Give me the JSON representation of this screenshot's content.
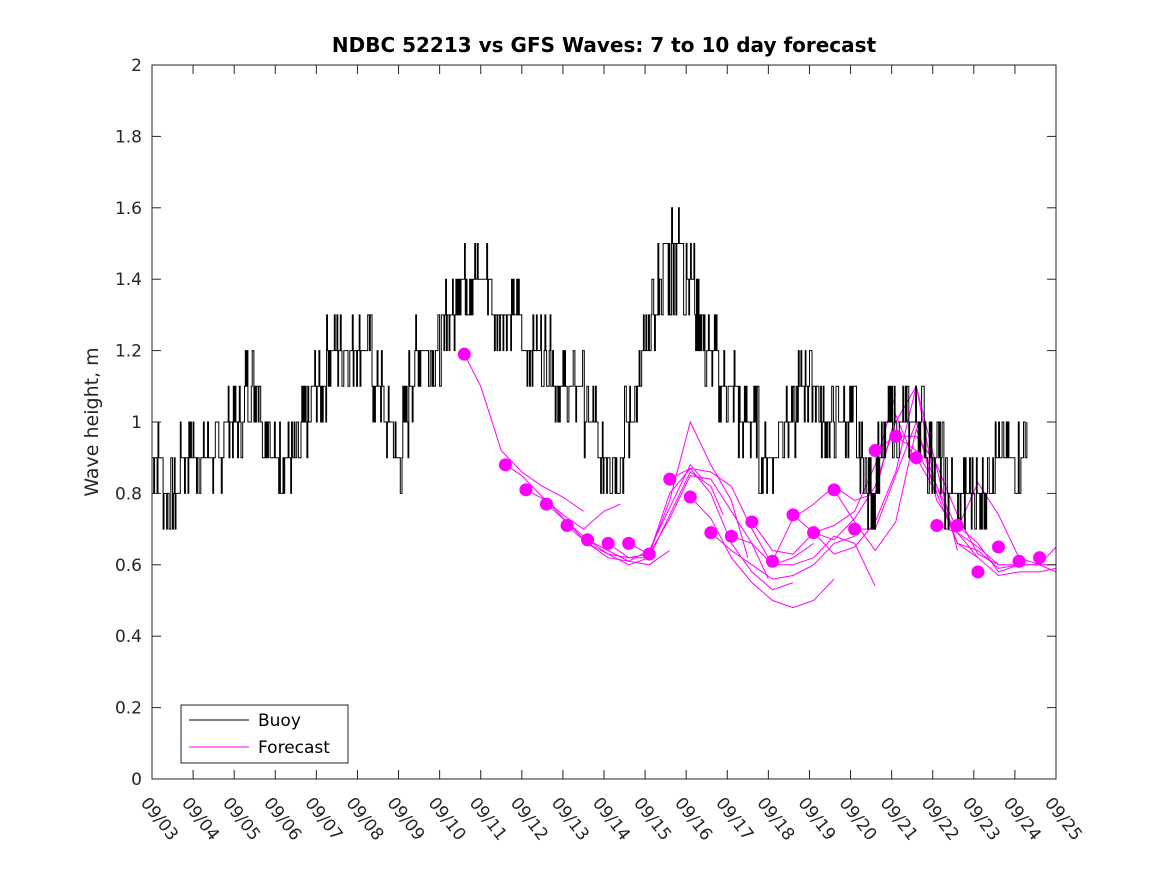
{
  "chart_data": {
    "type": "line",
    "title": "NDBC 52213 vs GFS Waves: 7 to 10 day forecast",
    "xlabel": "",
    "ylabel": "Wave height, m",
    "ylim": [
      0,
      2
    ],
    "xlim": [
      0,
      22
    ],
    "yticks": [
      0,
      0.2,
      0.4,
      0.6,
      0.8,
      1,
      1.2,
      1.4,
      1.6,
      1.8,
      2
    ],
    "ytick_labels": [
      "0",
      "0.2",
      "0.4",
      "0.6",
      "0.8",
      "1",
      "1.2",
      "1.4",
      "1.6",
      "1.8",
      "2"
    ],
    "xtick_labels": [
      "09/03",
      "09/04",
      "09/05",
      "09/06",
      "09/07",
      "09/08",
      "09/09",
      "09/10",
      "09/11",
      "09/12",
      "09/13",
      "09/14",
      "09/15",
      "09/16",
      "09/17",
      "09/18",
      "09/19",
      "09/20",
      "09/21",
      "09/22",
      "09/23",
      "09/24",
      "09/25"
    ],
    "colors": {
      "buoy": "#000000",
      "forecast": "#ff00ff",
      "axes": "#262626"
    },
    "legend": {
      "location": "bottom-left",
      "entries": [
        {
          "label": "Buoy",
          "color": "#000000"
        },
        {
          "label": "Forecast",
          "color": "#ff00ff"
        }
      ]
    },
    "series": [
      {
        "name": "Buoy",
        "x": [
          0.0,
          0.5,
          1.0,
          1.5,
          2.0,
          2.5,
          3.0,
          3.5,
          4.0,
          4.5,
          5.0,
          5.5,
          6.0,
          6.5,
          7.0,
          7.5,
          8.0,
          8.5,
          9.0,
          9.5,
          10.0,
          10.5,
          11.0,
          11.5,
          12.0,
          12.5,
          13.0,
          13.5,
          14.0,
          14.5,
          15.0,
          15.5,
          16.0,
          16.5,
          17.0,
          17.5,
          18.0,
          18.5,
          19.0,
          19.5,
          20.0,
          20.5,
          21.0,
          21.3
        ],
        "values": [
          0.9,
          0.8,
          0.95,
          0.9,
          1.0,
          1.1,
          0.9,
          0.9,
          1.1,
          1.2,
          1.25,
          1.1,
          0.9,
          1.2,
          1.2,
          1.4,
          1.4,
          1.3,
          1.25,
          1.2,
          1.1,
          1.05,
          0.9,
          0.95,
          1.2,
          1.45,
          1.45,
          1.2,
          1.1,
          1.0,
          0.9,
          1.0,
          1.15,
          0.95,
          1.0,
          0.8,
          1.0,
          1.05,
          0.9,
          0.8,
          0.75,
          0.9,
          0.85,
          1.0
        ],
        "buoy_noise": [
          0,
          0.1,
          0.2,
          0.1,
          -0.1,
          0,
          0.1,
          -0.1,
          0.1,
          0,
          0.1,
          -0.1,
          0.2,
          0,
          -0.1,
          0.1,
          0,
          -0.2,
          0.1,
          0.1,
          0,
          -0.1,
          0.2,
          0,
          -0.1,
          0.1,
          0,
          0.1,
          -0.1,
          0.1,
          0,
          -0.2,
          0.1,
          0,
          0.2,
          -0.1,
          0.1,
          0,
          -0.1,
          0.1,
          0,
          0.1,
          -0.1,
          0
        ]
      },
      {
        "name": "Forecast verification points",
        "x": [
          7.6,
          8.6,
          9.1,
          9.6,
          10.1,
          10.6,
          11.1,
          11.6,
          12.1,
          12.6,
          13.1,
          13.6,
          14.1,
          14.6,
          15.1,
          15.6,
          16.1,
          16.6,
          17.1,
          17.6,
          18.1,
          18.6,
          19.1,
          19.6,
          20.1,
          20.6,
          21.1,
          21.6
        ],
        "values": [
          1.19,
          0.88,
          0.81,
          0.77,
          0.71,
          0.67,
          0.66,
          0.66,
          0.63,
          0.84,
          0.79,
          0.69,
          0.68,
          0.72,
          0.61,
          0.74,
          0.69,
          0.81,
          0.7,
          0.92,
          0.96,
          0.9,
          0.71,
          0.71,
          0.58,
          0.65,
          0.61,
          0.62
        ]
      }
    ],
    "forecast_runs": [
      {
        "x": [
          7.6,
          8.0,
          8.5,
          9.0,
          9.5,
          10.0,
          10.5
        ],
        "values": [
          1.19,
          1.1,
          0.92,
          0.86,
          0.82,
          0.79,
          0.75
        ]
      },
      {
        "x": [
          8.6,
          9.0,
          9.5,
          10.0,
          10.5,
          11.0,
          11.4
        ],
        "values": [
          0.88,
          0.85,
          0.79,
          0.74,
          0.7,
          0.75,
          0.77
        ]
      },
      {
        "x": [
          9.1,
          9.6,
          10.1,
          10.6,
          11.1,
          11.6,
          12.1
        ],
        "values": [
          0.81,
          0.78,
          0.72,
          0.66,
          0.63,
          0.62,
          0.62
        ]
      },
      {
        "x": [
          9.6,
          10.1,
          10.6,
          11.1,
          11.6,
          12.1,
          12.6
        ],
        "values": [
          0.77,
          0.72,
          0.67,
          0.64,
          0.61,
          0.6,
          0.64
        ]
      },
      {
        "x": [
          10.1,
          10.6,
          11.1,
          11.6,
          12.1,
          12.6,
          13.1,
          13.4
        ],
        "values": [
          0.71,
          0.66,
          0.62,
          0.61,
          0.64,
          0.76,
          0.88,
          0.84
        ]
      },
      {
        "x": [
          10.6,
          11.1,
          11.6,
          12.1,
          12.6,
          13.1,
          13.6,
          13.9
        ],
        "values": [
          0.67,
          0.63,
          0.6,
          0.62,
          0.74,
          0.86,
          0.82,
          0.74
        ]
      },
      {
        "x": [
          11.1,
          11.6,
          12.1,
          12.6,
          13.1,
          13.6,
          14.1,
          14.5
        ],
        "values": [
          0.66,
          0.62,
          0.63,
          0.78,
          1.0,
          0.88,
          0.78,
          0.62
        ]
      },
      {
        "x": [
          11.6,
          12.1,
          12.6,
          13.1,
          13.6,
          14.1,
          14.6,
          15.0
        ],
        "values": [
          0.66,
          0.63,
          0.73,
          0.85,
          0.84,
          0.75,
          0.66,
          0.56
        ]
      },
      {
        "x": [
          12.1,
          12.6,
          13.1,
          13.6,
          14.1,
          14.6,
          15.1,
          15.6
        ],
        "values": [
          0.63,
          0.8,
          0.87,
          0.8,
          0.66,
          0.58,
          0.53,
          0.55
        ]
      },
      {
        "x": [
          12.6,
          13.1,
          13.6,
          14.1,
          14.6,
          15.1,
          15.6,
          16.1
        ],
        "values": [
          0.84,
          0.87,
          0.86,
          0.82,
          0.7,
          0.6,
          0.62,
          0.66
        ]
      },
      {
        "x": [
          13.1,
          13.6,
          14.1,
          14.6,
          15.1,
          15.6,
          16.1,
          16.6
        ],
        "values": [
          0.79,
          0.73,
          0.62,
          0.55,
          0.5,
          0.48,
          0.5,
          0.56
        ]
      },
      {
        "x": [
          13.6,
          14.1,
          14.6,
          15.1,
          15.6,
          16.1,
          16.6,
          17.1
        ],
        "values": [
          0.69,
          0.64,
          0.6,
          0.56,
          0.57,
          0.6,
          0.66,
          0.68
        ]
      },
      {
        "x": [
          14.1,
          14.6,
          15.1,
          15.6,
          16.1,
          16.6,
          17.1,
          17.6
        ],
        "values": [
          0.68,
          0.66,
          0.6,
          0.6,
          0.62,
          0.68,
          0.66,
          0.54
        ]
      },
      {
        "x": [
          14.6,
          15.1,
          15.6,
          16.1,
          16.6,
          17.1,
          17.6,
          18.1
        ],
        "values": [
          0.72,
          0.64,
          0.63,
          0.69,
          0.71,
          0.75,
          0.88,
          1.08
        ]
      },
      {
        "x": [
          15.1,
          15.6,
          16.1,
          16.6,
          17.1,
          17.6,
          18.1,
          18.6
        ],
        "values": [
          0.61,
          0.73,
          0.77,
          0.82,
          0.78,
          0.8,
          1.02,
          0.88
        ]
      },
      {
        "x": [
          15.6,
          16.1,
          16.6,
          17.1,
          17.6,
          18.1,
          18.6,
          19.1
        ],
        "values": [
          0.74,
          0.69,
          0.67,
          0.73,
          0.82,
          1.0,
          1.1,
          0.8
        ]
      },
      {
        "x": [
          16.1,
          16.6,
          17.1,
          17.6,
          18.1,
          18.6,
          19.1,
          19.6
        ],
        "values": [
          0.69,
          0.63,
          0.65,
          0.72,
          0.86,
          1.1,
          0.87,
          0.64
        ]
      },
      {
        "x": [
          16.6,
          17.1,
          17.6,
          18.1,
          18.6,
          19.1,
          19.6,
          20.1
        ],
        "values": [
          0.81,
          0.72,
          0.64,
          0.72,
          0.98,
          0.82,
          0.66,
          0.62
        ]
      },
      {
        "x": [
          17.1,
          17.6,
          18.1,
          18.6,
          19.1,
          19.6,
          20.1,
          20.6
        ],
        "values": [
          0.7,
          0.7,
          0.85,
          1.0,
          0.78,
          0.69,
          0.65,
          0.6
        ]
      },
      {
        "x": [
          17.6,
          18.1,
          18.6,
          19.1,
          19.6,
          20.1,
          20.6,
          21.1
        ],
        "values": [
          0.92,
          0.96,
          0.96,
          0.88,
          0.74,
          0.63,
          0.6,
          0.6
        ]
      },
      {
        "x": [
          18.1,
          18.6,
          19.1,
          19.6,
          20.1,
          20.6,
          21.1,
          21.6,
          22.0
        ],
        "values": [
          0.96,
          0.92,
          0.82,
          0.7,
          0.83,
          0.74,
          0.62,
          0.6,
          0.6
        ]
      },
      {
        "x": [
          18.6,
          19.1,
          19.6,
          20.1,
          20.6,
          21.1,
          21.6,
          22.0
        ],
        "values": [
          0.9,
          0.8,
          0.66,
          0.64,
          0.59,
          0.6,
          0.6,
          0.58
        ]
      },
      {
        "x": [
          19.1,
          19.6,
          20.1,
          20.6,
          21.1,
          21.6,
          22.0
        ],
        "values": [
          0.71,
          0.69,
          0.62,
          0.57,
          0.58,
          0.58,
          0.59
        ]
      },
      {
        "x": [
          19.6,
          20.1,
          20.6,
          21.1,
          21.6,
          22.0
        ],
        "values": [
          0.71,
          0.66,
          0.58,
          0.6,
          0.6,
          0.65
        ]
      }
    ]
  }
}
